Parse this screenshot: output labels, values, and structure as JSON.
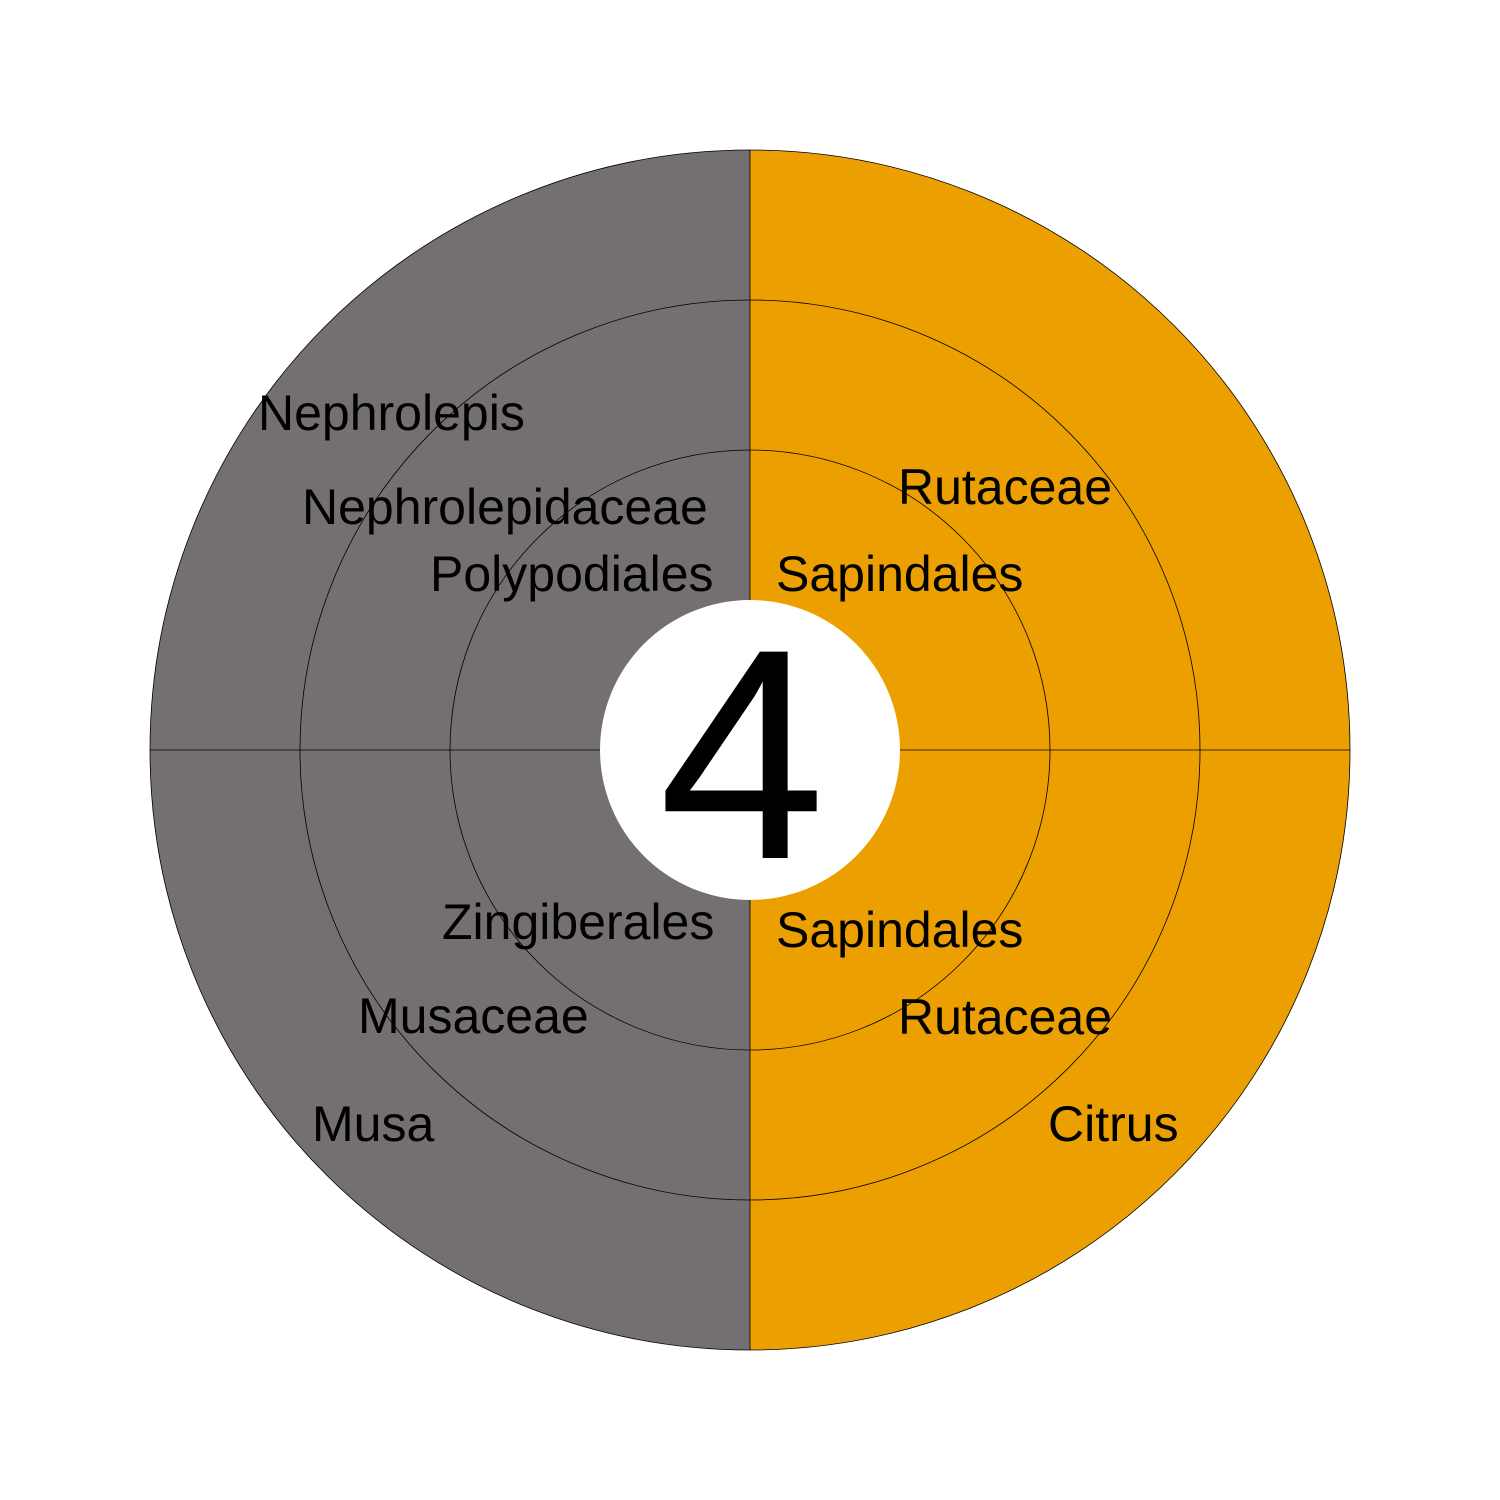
{
  "center_label": "4",
  "colors": {
    "left_half": "#746F72",
    "right_half": "#EC9F00",
    "center": "#FFFFFF",
    "lines": "#000000"
  },
  "quadrants": {
    "top_left": {
      "inner": "Polypodiales",
      "middle": "Nephrolepidaceae",
      "outer": "Nephrolepis"
    },
    "top_right": {
      "inner": "Sapindales",
      "middle": "Rutaceae"
    },
    "bottom_left": {
      "inner": "Zingiberales",
      "middle": "Musaceae",
      "outer": "Musa"
    },
    "bottom_right": {
      "inner": "Sapindales",
      "middle": "Rutaceae",
      "outer": "Citrus"
    }
  }
}
